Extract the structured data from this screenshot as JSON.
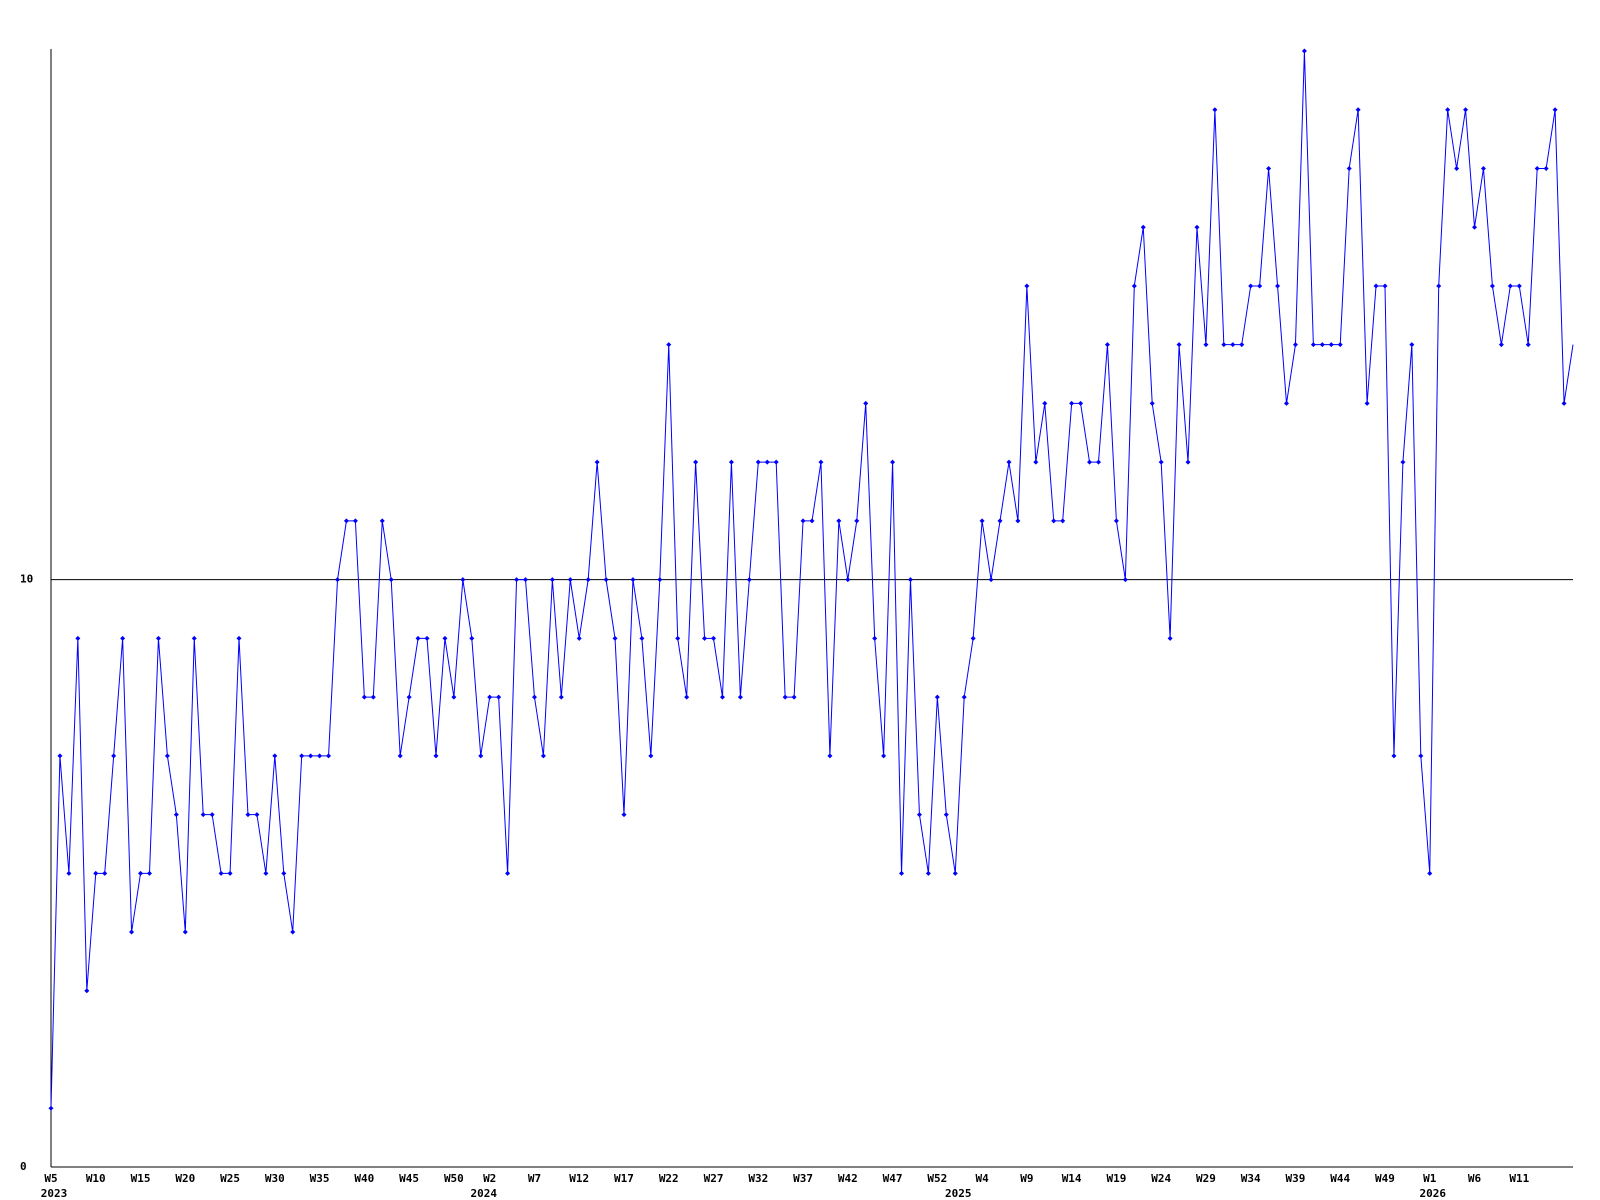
{
  "chart_data": {
    "type": "line",
    "categories": [
      "W5",
      null,
      null,
      null,
      null,
      "W10",
      null,
      null,
      null,
      null,
      "W15",
      null,
      null,
      null,
      null,
      "W20",
      null,
      null,
      null,
      null,
      "W25",
      null,
      null,
      null,
      null,
      "W30",
      null,
      null,
      null,
      null,
      "W35",
      null,
      null,
      null,
      null,
      "W40",
      null,
      null,
      null,
      null,
      "W45",
      null,
      null,
      null,
      null,
      "W50",
      null,
      null,
      null,
      "W2",
      null,
      null,
      null,
      null,
      "W7",
      null,
      null,
      null,
      null,
      "W12",
      null,
      null,
      null,
      null,
      "W17",
      null,
      null,
      null,
      null,
      "W22",
      null,
      null,
      null,
      null,
      "W27",
      null,
      null,
      null,
      null,
      "W32",
      null,
      null,
      null,
      null,
      "W37",
      null,
      null,
      null,
      null,
      "W42",
      null,
      null,
      null,
      null,
      "W47",
      null,
      null,
      null,
      null,
      "W52",
      null,
      null,
      null,
      null,
      "W4",
      null,
      null,
      null,
      null,
      "W9",
      null,
      null,
      null,
      null,
      "W14",
      null,
      null,
      null,
      null,
      "W19",
      null,
      null,
      null,
      null,
      "W24",
      null,
      null,
      null,
      null,
      "W29",
      null,
      null,
      null,
      null,
      "W34",
      null,
      null,
      null,
      null,
      "W39",
      null,
      null,
      null,
      null,
      "W44",
      null,
      null,
      null,
      null,
      "W49",
      null,
      null,
      null,
      null,
      "W1",
      null,
      null,
      null,
      null,
      "W6",
      null,
      null,
      null,
      null,
      "W11",
      null,
      null,
      null,
      null,
      null,
      null
    ],
    "category_years": [
      "2023",
      null,
      null,
      null,
      null,
      null,
      null,
      null,
      null,
      null,
      null,
      null,
      null,
      null,
      null,
      null,
      null,
      null,
      null,
      null,
      null,
      null,
      null,
      null,
      null,
      null,
      null,
      null,
      null,
      null,
      null,
      null,
      null,
      null,
      null,
      null,
      null,
      null,
      null,
      null,
      null,
      null,
      null,
      null,
      null,
      null,
      null,
      null,
      "2024",
      null,
      null,
      null,
      null,
      null,
      null,
      null,
      null,
      null,
      null,
      null,
      null,
      null,
      null,
      null,
      null,
      null,
      null,
      null,
      null,
      null,
      null,
      null,
      null,
      null,
      null,
      null,
      null,
      null,
      null,
      null,
      null,
      null,
      null,
      null,
      null,
      null,
      null,
      null,
      null,
      null,
      null,
      null,
      null,
      null,
      null,
      null,
      null,
      null,
      null,
      null,
      null,
      "2025",
      null,
      null,
      null,
      null,
      null,
      null,
      null,
      null,
      null,
      null,
      null,
      null,
      null,
      null,
      null,
      null,
      null,
      null,
      null,
      null,
      null,
      null,
      null,
      null,
      null,
      null,
      null,
      null,
      null,
      null,
      null,
      null,
      null,
      null,
      null,
      null,
      null,
      null,
      null,
      null,
      null,
      null,
      null,
      null,
      null,
      null,
      null,
      null,
      null,
      null,
      null,
      null,
      "2026",
      null,
      null,
      null,
      null,
      null,
      null,
      null,
      null,
      null,
      null,
      null,
      null,
      null,
      null,
      null,
      null
    ],
    "color": "#0000ff",
    "values": [
      1,
      7,
      5,
      9,
      3,
      5,
      5,
      7,
      9,
      4,
      5,
      5,
      9,
      7,
      6,
      4,
      9,
      6,
      6,
      5,
      5,
      9,
      6,
      6,
      5,
      7,
      5,
      4,
      7,
      7,
      7,
      7,
      10,
      11,
      11,
      8,
      8,
      11,
      10,
      7,
      8,
      9,
      9,
      7,
      9,
      8,
      10,
      9,
      7,
      8,
      8,
      5,
      10,
      10,
      8,
      7,
      10,
      8,
      10,
      9,
      10,
      12,
      10,
      9,
      6,
      10,
      9,
      7,
      10,
      14,
      9,
      8,
      12,
      9,
      9,
      8,
      12,
      8,
      10,
      12,
      12,
      12,
      8,
      8,
      11,
      11,
      12,
      7,
      11,
      10,
      11,
      13,
      9,
      7,
      12,
      5,
      10,
      6,
      5,
      8,
      6,
      5,
      8,
      9,
      11,
      10,
      11,
      12,
      11,
      15,
      12,
      13,
      11,
      11,
      13,
      13,
      12,
      12,
      14,
      11,
      10,
      15,
      16,
      13,
      12,
      9,
      14,
      12,
      16,
      14,
      18,
      14,
      14,
      14,
      15,
      15,
      17,
      15,
      13,
      14,
      19,
      14,
      14,
      14,
      14,
      17,
      18,
      13,
      15,
      15,
      7,
      12,
      14,
      7,
      5,
      15,
      18,
      17,
      18,
      16,
      17,
      15,
      14,
      15,
      15,
      14,
      17,
      17,
      18,
      13,
      14
    ],
    "ylim": [
      0,
      19
    ],
    "yticks": [
      0,
      10
    ],
    "grid": true
  }
}
